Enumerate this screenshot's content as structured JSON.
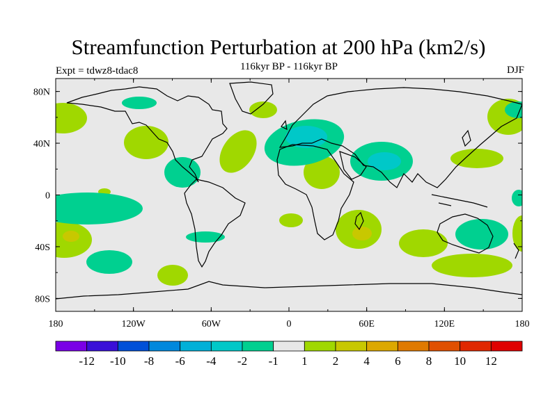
{
  "title": "Streamfunction Perturbation at 200 hPa (km2/s)",
  "subtitle": "116kyr BP - 116kyr BP",
  "expt_label": "Expt = tdwz8-tdac8",
  "season": "DJF",
  "lat_ticks": [
    "80N",
    "40N",
    "0",
    "40S",
    "80S"
  ],
  "lat_values": [
    80,
    40,
    0,
    -40,
    -80
  ],
  "lon_ticks": [
    "180",
    "120W",
    "60W",
    "0",
    "60E",
    "120E",
    "180"
  ],
  "lon_values": [
    -180,
    -120,
    -60,
    0,
    60,
    120,
    180
  ],
  "colors": {
    "background": "#e8e8e8",
    "g1": "#a0d800",
    "g2": "#c8c800",
    "t1": "#00d090",
    "t2": "#00c8c8"
  },
  "colorbar": {
    "colors": [
      "#7a00e6",
      "#3a10d8",
      "#0050d8",
      "#0088dd",
      "#00b0d8",
      "#00c8c8",
      "#00d090",
      "#e8e8e8",
      "#a0d800",
      "#c8c800",
      "#dca800",
      "#e07a00",
      "#e05000",
      "#e02800",
      "#e00000"
    ],
    "labels": [
      "-12",
      "-10",
      "-8",
      "-6",
      "-4",
      "-2",
      "-1",
      "1",
      "2",
      "4",
      "6",
      "8",
      "10",
      "12"
    ]
  }
}
